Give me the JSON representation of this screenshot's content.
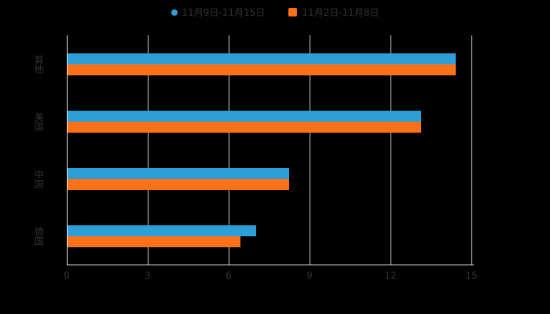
{
  "background": "#000000",
  "legend": {
    "items": [
      {
        "label": "11月9日-11月15日",
        "color": "#2D9FD8",
        "shape": "circle"
      },
      {
        "label": "11月2日-11月8日",
        "color": "#FF7119",
        "shape": "square"
      }
    ]
  },
  "axis": {
    "tick_labels": [
      "0",
      "3",
      "6",
      "9",
      "12",
      "15"
    ],
    "text_color": "#333333",
    "grid_color": "#cccccc",
    "axis_color": "#e6e6e6"
  },
  "chart_data": {
    "type": "bar",
    "orientation": "horizontal",
    "title": "",
    "xlabel": "",
    "ylabel": "",
    "categories": [
      "其他",
      "美国",
      "中国",
      "德国"
    ],
    "series": [
      {
        "name": "11月9日-11月15日",
        "color": "#2D9FD8",
        "values": [
          14.4,
          13.1,
          8.2,
          7.0
        ]
      },
      {
        "name": "11月2日-11月8日",
        "color": "#FF7119",
        "values": [
          14.4,
          13.1,
          8.2,
          6.4
        ]
      }
    ],
    "xlim": [
      0,
      15
    ],
    "x_ticks": [
      0,
      3,
      6,
      9,
      12,
      15
    ],
    "grid": true,
    "legend_position": "top"
  }
}
